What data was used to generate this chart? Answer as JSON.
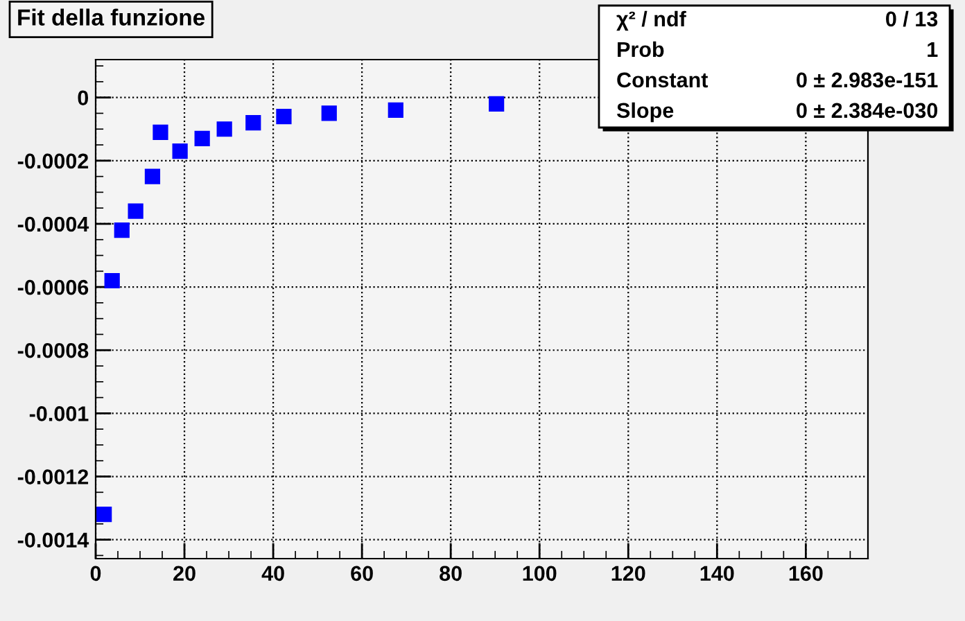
{
  "chart_data": {
    "type": "scatter",
    "title": "Fit della funzione",
    "x": [
      1.9,
      3.7,
      5.9,
      9.0,
      12.8,
      14.6,
      19.0,
      24.0,
      29.0,
      35.5,
      42.4,
      52.6,
      67.6,
      90.3
    ],
    "series": [
      {
        "color": "#0000ff",
        "values": [
          -0.00132,
          -0.00058,
          -0.00042,
          -0.00036,
          -0.00025,
          -0.00011,
          -0.00017,
          -0.00013,
          -0.0001,
          -8e-05,
          -6e-05,
          -5e-05,
          -4e-05,
          -2e-05
        ]
      }
    ],
    "marker": "square",
    "grid": true,
    "xlim": [
      0,
      174
    ],
    "xticks": [
      0,
      20,
      40,
      60,
      80,
      100,
      120,
      140,
      160
    ],
    "ylim": [
      -0.00146,
      0.00012
    ],
    "yticks": [
      -0.0014,
      -0.0012,
      -0.001,
      -0.0008,
      -0.0006,
      -0.0004,
      -0.0002,
      0
    ],
    "annotations": [
      "χ² / ndf",
      "0 / 13",
      "Prob",
      "1",
      "Constant",
      "0 ± 2.983e-151",
      "Slope",
      "0 ± 2.384e-030"
    ]
  }
}
